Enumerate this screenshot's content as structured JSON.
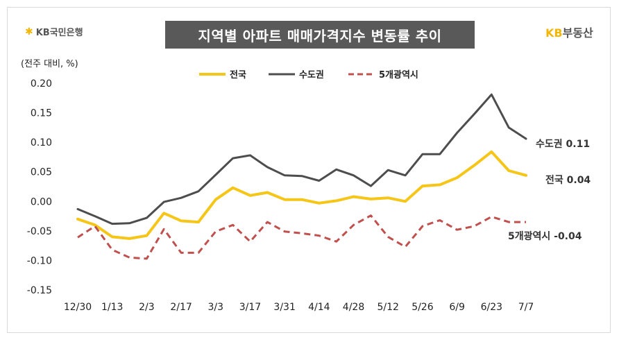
{
  "header": {
    "logo_left_icon": "kb-star-icon",
    "logo_left_text": "KB국민은행",
    "title": "지역별 아파트 매매가격지수 변동률 추이",
    "logo_right_kb": "KB",
    "logo_right_text": "부동산"
  },
  "colors": {
    "nation": "#f5c518",
    "capital": "#4d4d4d",
    "metro": "#c0504d",
    "title_bg": "#595959"
  },
  "chart_data": {
    "type": "line",
    "unit_label": "(전주 대비, %)",
    "ylim": [
      -0.15,
      0.2
    ],
    "yticks": [
      "0.20",
      "0.15",
      "0.10",
      "0.05",
      "0.00",
      "-0.05",
      "-0.10",
      "-0.15"
    ],
    "ytick_values": [
      0.2,
      0.15,
      0.1,
      0.05,
      0.0,
      -0.05,
      -0.1,
      -0.15
    ],
    "x_tick_labels": [
      "12/30",
      "1/13",
      "2/3",
      "2/17",
      "3/3",
      "3/17",
      "3/31",
      "4/14",
      "4/28",
      "5/12",
      "5/26",
      "6/9",
      "6/23",
      "7/7"
    ],
    "x_tick_indices": [
      0,
      2,
      4,
      6,
      8,
      10,
      12,
      14,
      16,
      18,
      20,
      22,
      24,
      26
    ],
    "x": [
      "12/30",
      "1/6",
      "1/13",
      "1/20",
      "2/3",
      "2/10",
      "2/17",
      "2/24",
      "3/3",
      "3/10",
      "3/17",
      "3/24",
      "3/31",
      "4/7",
      "4/14",
      "4/21",
      "4/28",
      "5/5",
      "5/12",
      "5/19",
      "5/26",
      "6/2",
      "6/9",
      "6/16",
      "6/23",
      "6/30",
      "7/7"
    ],
    "legend_position": "top",
    "grid": false,
    "series": [
      {
        "name": "전국",
        "style": "solid",
        "color": "#f5c518",
        "values": [
          -0.03,
          -0.04,
          -0.06,
          -0.063,
          -0.058,
          -0.02,
          -0.033,
          -0.035,
          0.003,
          0.023,
          0.01,
          0.015,
          0.003,
          0.003,
          -0.003,
          0.001,
          0.008,
          0.004,
          0.006,
          0.0,
          0.026,
          0.028,
          0.04,
          0.061,
          0.084,
          0.052,
          0.044
        ],
        "end_label": "전국 0.04"
      },
      {
        "name": "수도권",
        "style": "solid",
        "color": "#4d4d4d",
        "values": [
          -0.013,
          -0.025,
          -0.038,
          -0.037,
          -0.028,
          -0.001,
          0.006,
          0.017,
          0.045,
          0.073,
          0.078,
          0.058,
          0.044,
          0.043,
          0.035,
          0.054,
          0.044,
          0.026,
          0.053,
          0.044,
          0.08,
          0.08,
          0.116,
          0.148,
          0.181,
          0.125,
          0.106
        ],
        "end_label": "수도권 0.11"
      },
      {
        "name": "5개광역시",
        "style": "dashed",
        "color": "#c0504d",
        "values": [
          -0.061,
          -0.042,
          -0.082,
          -0.095,
          -0.097,
          -0.047,
          -0.087,
          -0.087,
          -0.051,
          -0.04,
          -0.068,
          -0.035,
          -0.051,
          -0.054,
          -0.058,
          -0.068,
          -0.04,
          -0.024,
          -0.06,
          -0.077,
          -0.042,
          -0.032,
          -0.048,
          -0.042,
          -0.026,
          -0.035,
          -0.035
        ],
        "end_label": "5개광역시 -0.04"
      }
    ]
  }
}
